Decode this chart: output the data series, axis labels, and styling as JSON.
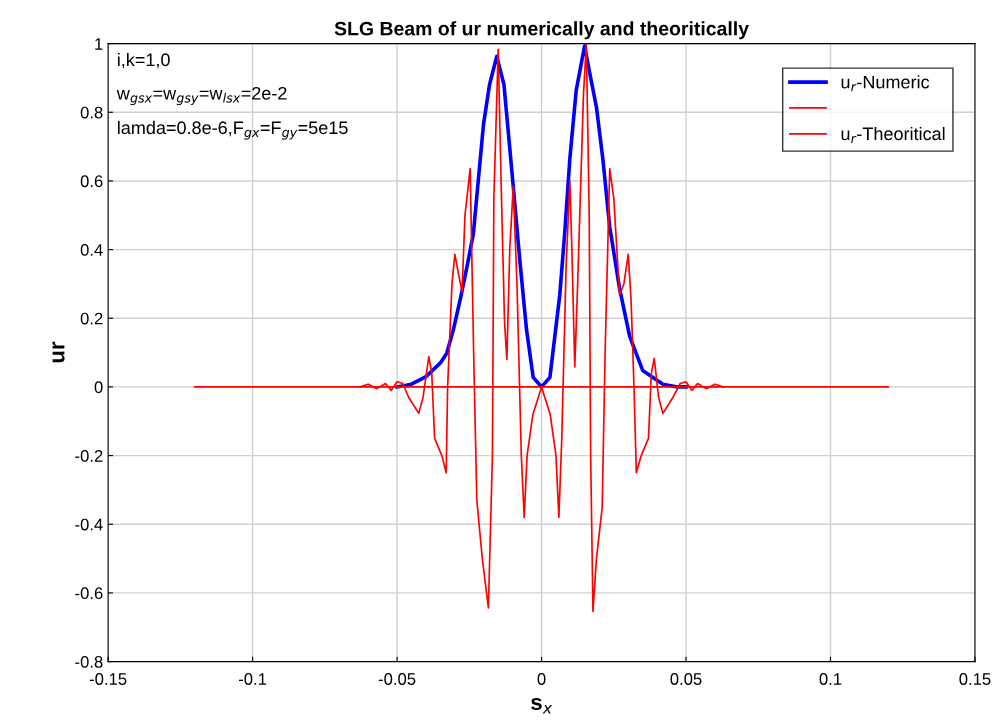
{
  "chart_data": {
    "type": "line",
    "title": "SLG Beam of ur numerically and theoritically",
    "xlabel": "s$_{x}$",
    "ylabel": "ur",
    "annotations": [
      "i,k=1,0",
      "w$_{gsx}$=w$_{gsy}$=w$_{lsx}$=2e-2",
      "lamda=0.8e-6,F$_{gx}$=F$_{gy}$=5e15"
    ],
    "xlim": [
      -0.15,
      0.15
    ],
    "xticks": [
      -0.15,
      -0.1,
      -0.05,
      0,
      0.05,
      0.1,
      0.15
    ],
    "ylim": [
      -0.8,
      1
    ],
    "yticks": [
      -0.8,
      -0.6,
      -0.4,
      -0.2,
      0,
      0.2,
      0.4,
      0.6,
      0.8,
      1
    ],
    "grid": true,
    "legend": "top right",
    "series": [
      {
        "name": "u$_{r}$-Numeric",
        "color": "#0000ff",
        "x": [
          -0.05,
          -0.045,
          -0.04,
          -0.035,
          -0.0328,
          -0.0305,
          -0.028,
          -0.0259,
          -0.0236,
          -0.0201,
          -0.018,
          -0.0155,
          -0.013,
          -0.0098,
          -0.0075,
          -0.0052,
          -0.0029,
          0,
          0.0029,
          0.0063,
          0.008,
          0.0098,
          0.012,
          0.0149,
          0.017,
          0.019,
          0.0212,
          0.0236,
          0.027,
          0.0305,
          0.035,
          0.042,
          0.047,
          0.05
        ],
        "values": [
          0,
          0.008,
          0.03,
          0.07,
          0.098,
          0.167,
          0.26,
          0.346,
          0.446,
          0.764,
          0.88,
          0.963,
          0.88,
          0.585,
          0.367,
          0.167,
          0.028,
          0,
          0.028,
          0.267,
          0.446,
          0.665,
          0.864,
          0.993,
          0.9,
          0.815,
          0.665,
          0.466,
          0.287,
          0.147,
          0.048,
          0.008,
          0,
          0
        ]
      },
      {
        "color": "#ff0000",
        "x": [
          -0.12,
          0.12
        ],
        "values": [
          0,
          0
        ]
      },
      {
        "name": "u$_{r}$-Theoritical",
        "color": "#ff0000",
        "x": [
          -0.063,
          -0.06,
          -0.057,
          -0.054,
          -0.052,
          -0.05,
          -0.048,
          -0.046,
          -0.0425,
          -0.041,
          -0.0395,
          -0.039,
          -0.038,
          -0.037,
          -0.0345,
          -0.033,
          -0.0325,
          -0.032,
          -0.031,
          -0.03,
          -0.029,
          -0.0275,
          -0.0265,
          -0.0247,
          -0.0235,
          -0.0224,
          -0.0205,
          -0.0184,
          -0.017,
          -0.0165,
          -0.015,
          -0.014,
          -0.0128,
          -0.012,
          -0.011,
          -0.0098,
          -0.0085,
          -0.007,
          -0.006,
          -0.005,
          -0.003,
          0,
          0.003,
          0.005,
          0.006,
          0.007,
          0.0085,
          0.0098,
          0.0105,
          0.0115,
          0.0125,
          0.0145,
          0.0155,
          0.0165,
          0.017,
          0.0178,
          0.019,
          0.021,
          0.022,
          0.0236,
          0.025,
          0.027,
          0.0285,
          0.03,
          0.031,
          0.032,
          0.0328,
          0.0345,
          0.037,
          0.038,
          0.039,
          0.0405,
          0.042,
          0.0455,
          0.048,
          0.05,
          0.052,
          0.054,
          0.057,
          0.06,
          0.063
        ],
        "values": [
          0,
          0.008,
          -0.005,
          0.01,
          -0.01,
          0.015,
          0.01,
          -0.03,
          -0.077,
          -0.03,
          0.06,
          0.088,
          0.04,
          -0.15,
          -0.2,
          -0.25,
          0.0,
          0.1,
          0.3,
          0.386,
          0.34,
          0.277,
          0.5,
          0.636,
          0.1,
          -0.33,
          -0.5,
          -0.644,
          -0.2,
          0.55,
          0.983,
          0.6,
          0.187,
          0.08,
          0.4,
          0.585,
          0.3,
          -0.2,
          -0.38,
          -0.2,
          -0.08,
          0,
          -0.08,
          -0.2,
          -0.38,
          -0.15,
          0.35,
          0.6,
          0.4,
          0.058,
          0.3,
          0.85,
          1.0,
          0.5,
          -0.2,
          -0.654,
          -0.5,
          -0.35,
          0.1,
          0.636,
          0.55,
          0.267,
          0.3,
          0.386,
          0.25,
          0.0,
          -0.25,
          -0.2,
          -0.15,
          0.04,
          0.083,
          -0.03,
          -0.077,
          -0.03,
          0.01,
          0.015,
          -0.01,
          0.01,
          -0.005,
          0.008,
          0
        ]
      }
    ]
  }
}
